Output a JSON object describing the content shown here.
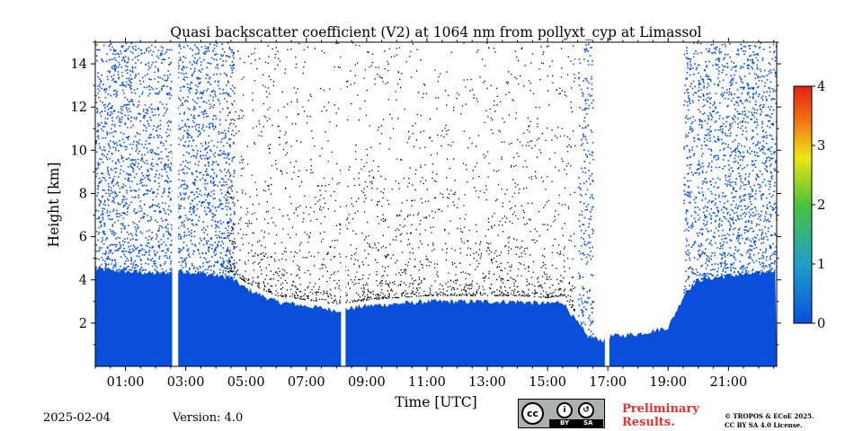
{
  "chart_data": {
    "type": "heatmap",
    "title": "Quasi backscatter coefficient (V2) at 1064 nm from pollyxt_cyp at Limassol",
    "xlabel": "Time [UTC]",
    "ylabel": "Height [km]",
    "xlim": [
      0.0,
      22.6
    ],
    "ylim": [
      0.0,
      15.0
    ],
    "x_ticks": [
      1,
      3,
      5,
      7,
      9,
      11,
      13,
      15,
      17,
      19,
      21
    ],
    "x_tick_labels": [
      "01:00",
      "03:00",
      "05:00",
      "07:00",
      "09:00",
      "11:00",
      "13:00",
      "15:00",
      "17:00",
      "19:00",
      "21:00"
    ],
    "y_ticks": [
      2,
      4,
      6,
      8,
      10,
      12,
      14
    ],
    "y_tick_labels": [
      "2",
      "4",
      "6",
      "8",
      "10",
      "12",
      "14"
    ],
    "colorbar": {
      "range": [
        0,
        4
      ],
      "ticks": [
        0,
        1,
        2,
        3,
        4
      ],
      "tick_labels": [
        "0",
        "1",
        "2",
        "3",
        "4"
      ],
      "colors": [
        "#0a4fdc",
        "#1ea0c8",
        "#4cc23c",
        "#f0e614",
        "#f07814",
        "#e61e14"
      ]
    },
    "colors": {
      "layer": "#0a4fdc",
      "cloud": "#000000"
    },
    "data_gaps": [
      [
        2.55,
        2.75
      ],
      [
        8.15,
        8.3
      ],
      [
        16.9,
        17.05
      ]
    ],
    "layer_top_profile": {
      "time": [
        0,
        1,
        2,
        3,
        4,
        4.5,
        5,
        6,
        7,
        8,
        9,
        10,
        11,
        12,
        13,
        14,
        15,
        15.5,
        16,
        16.3,
        16.9,
        17.1,
        18,
        19,
        19.6,
        20,
        21,
        22,
        22.6
      ],
      "height_km": [
        4.5,
        4.4,
        4.3,
        4.4,
        4.2,
        4.1,
        3.6,
        3.0,
        2.8,
        2.6,
        2.8,
        2.9,
        3.0,
        3.0,
        3.0,
        3.0,
        2.9,
        3.0,
        2.0,
        1.4,
        1.2,
        1.4,
        1.5,
        1.8,
        3.5,
        4.0,
        4.2,
        4.3,
        4.5
      ]
    },
    "noise_regions": [
      [
        0,
        4.6
      ],
      [
        16,
        16.5
      ],
      [
        19.5,
        22.6
      ]
    ]
  },
  "footer": {
    "date": "2025-02-04",
    "version": "Version: 4.0",
    "license_badge": {
      "cc": "cc",
      "by": "BY",
      "sa": "SA"
    },
    "preliminary": [
      "Preliminary",
      "Results."
    ],
    "copyright": [
      "© TROPOS & ECoE 2025.",
      "CC BY SA 4.0 License."
    ]
  }
}
